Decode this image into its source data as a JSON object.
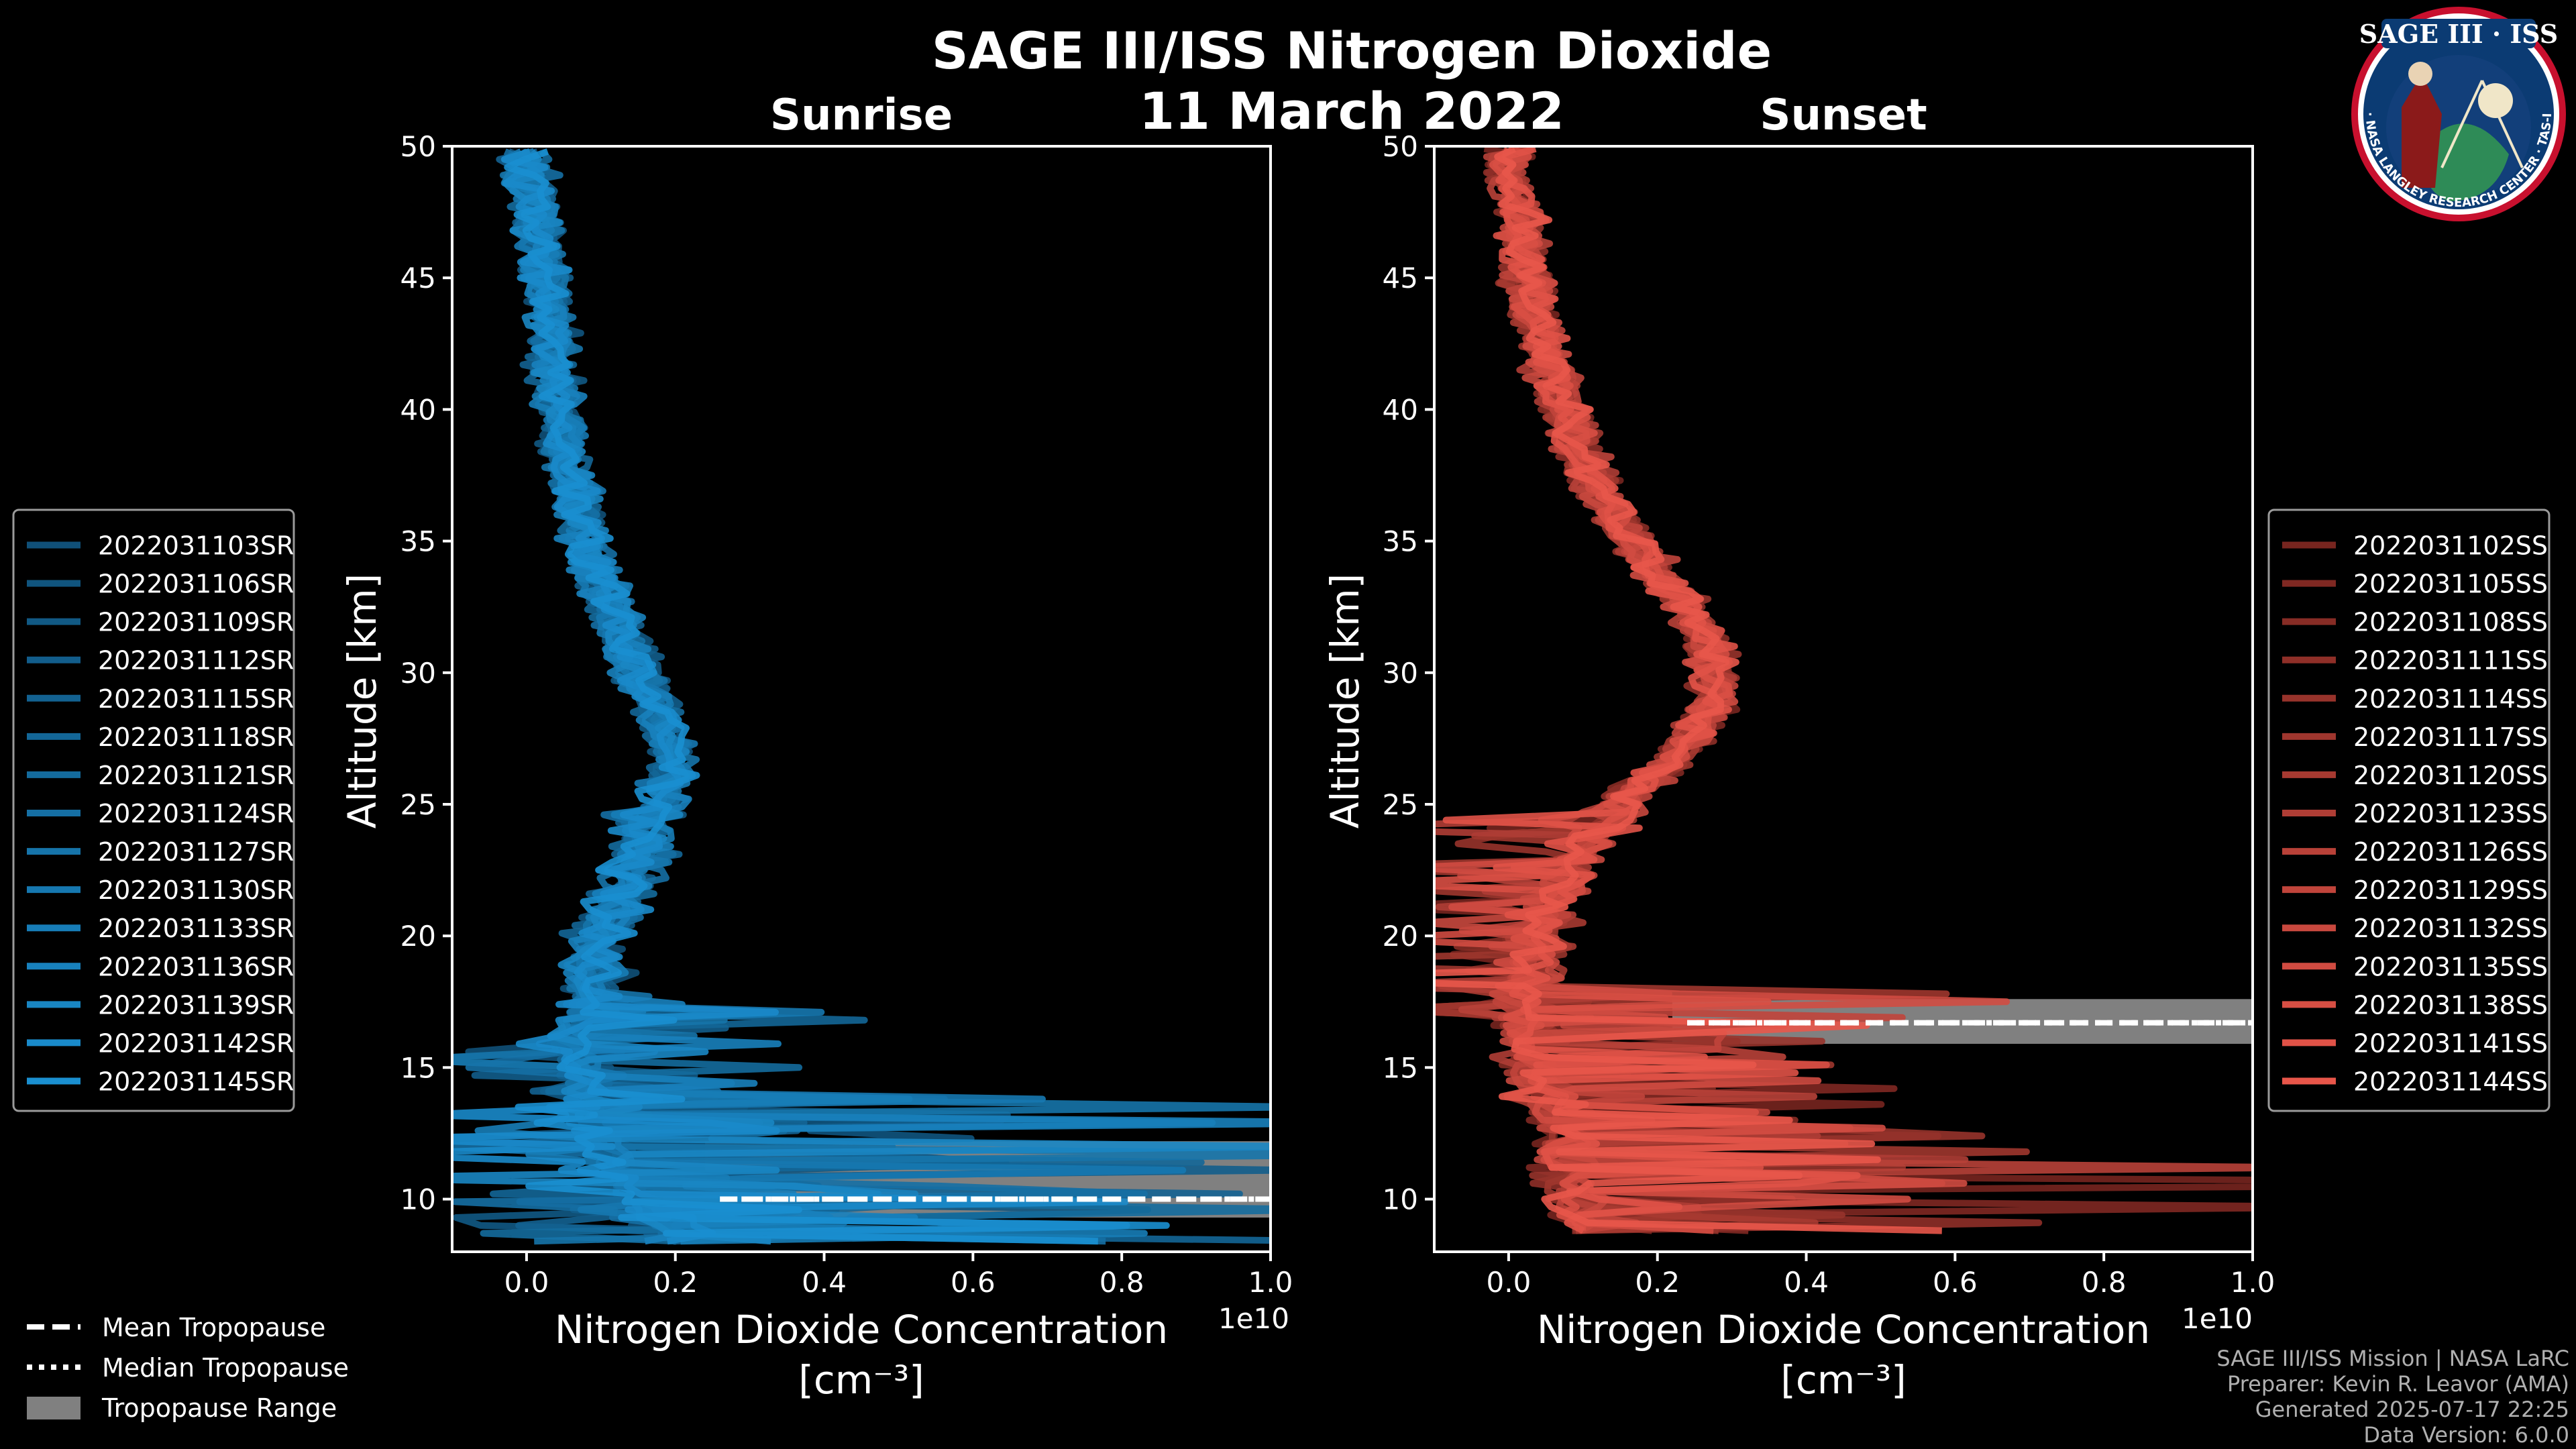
{
  "figure": {
    "title": "SAGE III/ISS Nitrogen Dioxide",
    "date": "11 March 2022"
  },
  "badge": {
    "text": "SAGE III · ISS",
    "ring_text": "BALL · NASA LANGLEY RESEARCH CENTER · TAS-I · ESA"
  },
  "colors": {
    "sunrise": "#1a8fd0",
    "sunset": "#e8564a",
    "tropopause_range": "#808080",
    "background": "#000000"
  },
  "chart_data": [
    {
      "type": "line",
      "title": "Sunrise",
      "xlabel": "Nitrogen Dioxide Concentration",
      "xlabel_unit": "[cm⁻³]",
      "ylabel": "Altitude [km]",
      "xlim": [
        -0.1,
        1.0
      ],
      "ylim": [
        8,
        50
      ],
      "x_offset_text": "1e10",
      "x_ticks": [
        "0.0",
        "0.2",
        "0.4",
        "0.6",
        "0.8",
        "1.0"
      ],
      "y_ticks": [
        "10",
        "15",
        "20",
        "25",
        "30",
        "35",
        "40",
        "45",
        "50"
      ],
      "legend_position": "left",
      "series_names": [
        "2022031103SR",
        "2022031106SR",
        "2022031109SR",
        "2022031112SR",
        "2022031115SR",
        "2022031118SR",
        "2022031121SR",
        "2022031124SR",
        "2022031127SR",
        "2022031130SR",
        "2022031133SR",
        "2022031136SR",
        "2022031139SR",
        "2022031142SR",
        "2022031145SR"
      ],
      "profile": {
        "altitude": [
          8.5,
          10,
          12,
          14,
          16,
          18,
          20,
          22,
          24,
          26,
          27,
          28,
          30,
          32,
          34,
          36,
          38,
          40,
          42,
          44,
          46,
          48,
          50
        ],
        "no2": [
          0.2,
          0.15,
          0.1,
          0.08,
          0.07,
          0.09,
          0.1,
          0.13,
          0.16,
          0.19,
          0.2,
          0.19,
          0.15,
          0.12,
          0.09,
          0.07,
          0.055,
          0.045,
          0.035,
          0.03,
          0.02,
          0.01,
          0.0
        ]
      },
      "tropopause": {
        "mean": 10.0,
        "median": 10.0,
        "range": [
          9.3,
          12.2
        ]
      }
    },
    {
      "type": "line",
      "title": "Sunset",
      "xlabel": "Nitrogen Dioxide Concentration",
      "xlabel_unit": "[cm⁻³]",
      "ylabel": "Altitude [km]",
      "xlim": [
        -0.1,
        1.0
      ],
      "ylim": [
        8,
        50
      ],
      "x_offset_text": "1e10",
      "x_ticks": [
        "0.0",
        "0.2",
        "0.4",
        "0.6",
        "0.8",
        "1.0"
      ],
      "y_ticks": [
        "10",
        "15",
        "20",
        "25",
        "30",
        "35",
        "40",
        "45",
        "50"
      ],
      "legend_position": "right",
      "series_names": [
        "2022031102SS",
        "2022031105SS",
        "2022031108SS",
        "2022031111SS",
        "2022031114SS",
        "2022031117SS",
        "2022031120SS",
        "2022031123SS",
        "2022031126SS",
        "2022031129SS",
        "2022031132SS",
        "2022031135SS",
        "2022031138SS",
        "2022031141SS",
        "2022031144SS"
      ],
      "profile": {
        "altitude": [
          9,
          11,
          13,
          15,
          17,
          19,
          21,
          23,
          25,
          27,
          28.5,
          30,
          32,
          34,
          36,
          38,
          40,
          42,
          44,
          46,
          48,
          50
        ],
        "no2": [
          0.1,
          0.08,
          0.06,
          0.03,
          0.02,
          0.03,
          0.05,
          0.09,
          0.15,
          0.23,
          0.27,
          0.28,
          0.25,
          0.2,
          0.14,
          0.1,
          0.07,
          0.05,
          0.03,
          0.02,
          0.01,
          0.0
        ]
      },
      "tropopause": {
        "mean": 16.7,
        "median": 16.7,
        "range": [
          15.9,
          17.6
        ]
      }
    }
  ],
  "legend_common": {
    "mean": "Mean Tropopause",
    "median": "Median Tropopause",
    "range": "Tropopause Range"
  },
  "credits": [
    "SAGE III/ISS Mission | NASA LaRC",
    "Preparer: Kevin R. Leavor (AMA)",
    "Generated 2025-07-17 22:25",
    "Data Version: 6.0.0"
  ]
}
